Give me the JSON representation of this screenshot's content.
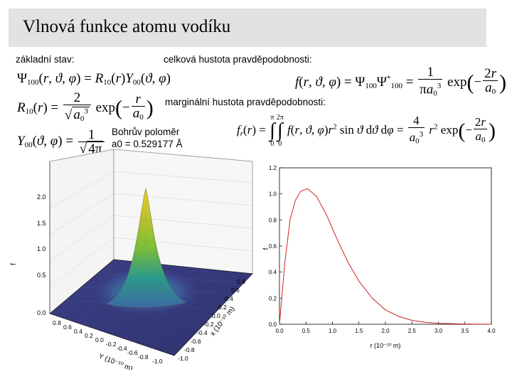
{
  "title": "Vlnová funkce atomu vodíku",
  "labels": {
    "ground_state": "základní stav:",
    "total_density": "celková hustota pravděpodobnosti:",
    "marginal_density": "marginální hustota pravděpodobnosti:",
    "bohr_radius": "Bohrův poloměr",
    "bohr_value": "a0 = 0.529177 Å"
  },
  "equations": {
    "psi": "Ψ100(r,ϑ,φ) = R10(r)Y00(ϑ,φ)",
    "radial": "R10(r) = 2/√(a0³) exp(−r/a0)",
    "harmonic": "Y00(ϑ,φ) = 1/√(4π)",
    "density": "f(r,ϑ,φ) = Ψ100Ψ*100 = 1/(πa0³) exp(−2r/a0)",
    "marginal": "fr(r) = ∫0^π ∫0^2π f(r,ϑ,φ) r² sinϑ dϑ dφ = 4/a0³ r² exp(−2r/a0)"
  },
  "surface_plot": {
    "z_ticks": [
      "0.0",
      "0.5",
      "1.0",
      "1.5",
      "2.0"
    ],
    "x_ticks": [
      "0.8",
      "0.6",
      "0.4",
      "0.2",
      "0.0",
      "-0.2",
      "-0.4",
      "-0.6",
      "-0.8",
      "-1.0"
    ],
    "y_ticks": [
      "0.8",
      "0.6",
      "0.4",
      "0.2",
      "0.0",
      "-0.2",
      "-0.4",
      "-0.6",
      "-0.8",
      "-1.0"
    ],
    "y_label": "Y (10⁻¹⁰ m)",
    "x_label": "x (10⁻¹⁰ m)",
    "z_label": "f"
  },
  "chart_data": {
    "type": "line",
    "title": "",
    "xlabel": "r (10⁻¹⁰ m)",
    "ylabel": "f",
    "xlim": [
      0.0,
      4.0
    ],
    "ylim": [
      0.0,
      1.2
    ],
    "x_ticks": [
      "0.0",
      "0.5",
      "1.0",
      "1.5",
      "2.0",
      "2.5",
      "3.0",
      "3.5",
      "4.0"
    ],
    "y_ticks": [
      "0.0",
      "0.2",
      "0.4",
      "0.6",
      "0.8",
      "1.0",
      "1.2"
    ],
    "x": [
      0.0,
      0.1,
      0.2,
      0.3,
      0.4,
      0.529,
      0.7,
      0.9,
      1.1,
      1.3,
      1.5,
      1.75,
      2.0,
      2.25,
      2.5,
      2.75,
      3.0,
      3.5,
      4.0
    ],
    "y": [
      0.0,
      0.47,
      0.8,
      0.95,
      1.02,
      1.04,
      0.98,
      0.83,
      0.64,
      0.47,
      0.33,
      0.2,
      0.11,
      0.06,
      0.03,
      0.015,
      0.007,
      0.002,
      0.0
    ],
    "line_color": "#cc2222",
    "grid": false
  }
}
